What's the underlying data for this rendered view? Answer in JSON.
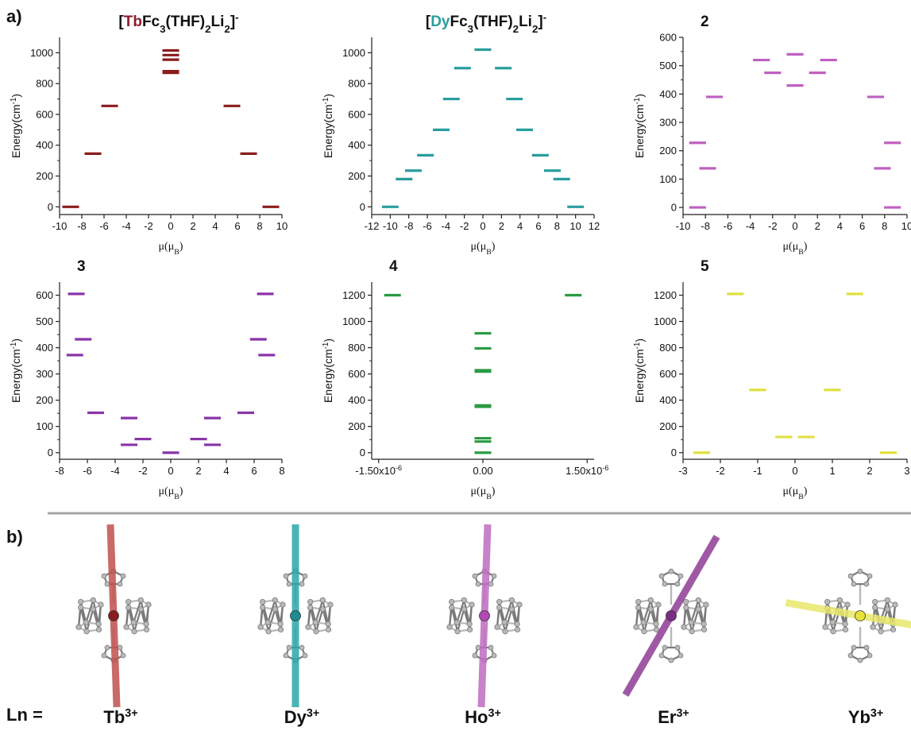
{
  "figure": {
    "panel_a_label": "a)",
    "panel_b_label": "b)",
    "ln_prefix": "Ln =",
    "ions": [
      {
        "symbol": "Tb",
        "charge": "3+",
        "axis_color": "#c0504d"
      },
      {
        "symbol": "Dy",
        "charge": "3+",
        "axis_color": "#2aa7a7"
      },
      {
        "symbol": "Ho",
        "charge": "3+",
        "axis_color": "#bd6cc0"
      },
      {
        "symbol": "Er",
        "charge": "3+",
        "axis_color": "#8e3c94"
      },
      {
        "symbol": "Yb",
        "charge": "3+",
        "axis_color": "#e8e86a"
      }
    ],
    "colors": {
      "divider": "#a6a6a6",
      "axis": "#222222",
      "molecule": "#b9b9b9",
      "molecule_edge": "#7a7a7a"
    }
  },
  "chart_data": [
    {
      "type": "scatter",
      "title_parts": [
        {
          "t": "[",
          "color": "#111111"
        },
        {
          "t": "Tb",
          "color": "#8b1c2c"
        },
        {
          "t": "Fc",
          "color": "#111111"
        },
        {
          "t": "3",
          "sub": true
        },
        {
          "t": "(THF)",
          "color": "#111111"
        },
        {
          "t": "2",
          "sub": true
        },
        {
          "t": "Li",
          "color": "#111111"
        },
        {
          "t": "2",
          "sub": true
        },
        {
          "t": "]",
          "color": "#111111"
        },
        {
          "t": "-",
          "sup": true
        }
      ],
      "ylabel": "Energy(cm-1)",
      "xlabel": "μ(μB)",
      "xlim": [
        -10,
        10
      ],
      "ylim": [
        -50,
        1100
      ],
      "xticks": [
        -10,
        -8,
        -6,
        -4,
        -2,
        0,
        2,
        4,
        6,
        8,
        10
      ],
      "yticks": [
        0,
        200,
        400,
        600,
        800,
        1000
      ],
      "color": "#8b1c1c",
      "levels": [
        {
          "mu": -9.0,
          "E": 0
        },
        {
          "mu": 9.0,
          "E": 0
        },
        {
          "mu": -7.0,
          "E": 345
        },
        {
          "mu": 7.0,
          "E": 345
        },
        {
          "mu": -5.5,
          "E": 655
        },
        {
          "mu": 5.5,
          "E": 655
        },
        {
          "mu": 0,
          "E": 870
        },
        {
          "mu": 0,
          "E": 880
        },
        {
          "mu": 0,
          "E": 955
        },
        {
          "mu": 0,
          "E": 985
        },
        {
          "mu": 0,
          "E": 1015
        }
      ]
    },
    {
      "type": "scatter",
      "title_parts": [
        {
          "t": "[",
          "color": "#111111"
        },
        {
          "t": "Dy",
          "color": "#2a9d9d"
        },
        {
          "t": "Fc",
          "color": "#111111"
        },
        {
          "t": "3",
          "sub": true
        },
        {
          "t": "(THF)",
          "color": "#111111"
        },
        {
          "t": "2",
          "sub": true
        },
        {
          "t": "Li",
          "color": "#111111"
        },
        {
          "t": "2",
          "sub": true
        },
        {
          "t": "]",
          "color": "#111111"
        },
        {
          "t": "-",
          "sup": true
        }
      ],
      "ylabel": "Energy(cm-1)",
      "xlabel": "μ(μB)",
      "xlim": [
        -12,
        12
      ],
      "ylim": [
        -50,
        1100
      ],
      "xticks": [
        -12,
        -10,
        -8,
        -6,
        -4,
        -2,
        0,
        2,
        4,
        6,
        8,
        10,
        12
      ],
      "yticks": [
        0,
        200,
        400,
        600,
        800,
        1000
      ],
      "color": "#2a9d9d",
      "levels": [
        {
          "mu": -10,
          "E": 0
        },
        {
          "mu": 10,
          "E": 0
        },
        {
          "mu": -8.5,
          "E": 180
        },
        {
          "mu": 8.5,
          "E": 180
        },
        {
          "mu": -7.5,
          "E": 235
        },
        {
          "mu": 7.5,
          "E": 235
        },
        {
          "mu": -6.2,
          "E": 335
        },
        {
          "mu": 6.2,
          "E": 335
        },
        {
          "mu": -4.5,
          "E": 500
        },
        {
          "mu": 4.5,
          "E": 500
        },
        {
          "mu": -3.4,
          "E": 700
        },
        {
          "mu": 3.4,
          "E": 700
        },
        {
          "mu": -2.2,
          "E": 900
        },
        {
          "mu": 2.2,
          "E": 900
        },
        {
          "mu": 0,
          "E": 1020
        }
      ]
    },
    {
      "type": "scatter",
      "title_parts": [
        {
          "t": "2",
          "color": "#111111"
        }
      ],
      "ylabel": "Energy(cm-1)",
      "xlabel": "μ(μB)",
      "xlim": [
        -10,
        10
      ],
      "ylim": [
        -25,
        600
      ],
      "xticks": [
        -10,
        -8,
        -6,
        -4,
        -2,
        0,
        2,
        4,
        6,
        8,
        10
      ],
      "yticks": [
        0,
        100,
        200,
        300,
        400,
        500,
        600
      ],
      "color": "#c060c0",
      "levels": [
        {
          "mu": -8.7,
          "E": 0
        },
        {
          "mu": 8.7,
          "E": 0
        },
        {
          "mu": -7.8,
          "E": 138
        },
        {
          "mu": 7.8,
          "E": 138
        },
        {
          "mu": -8.7,
          "E": 228
        },
        {
          "mu": 8.7,
          "E": 228
        },
        {
          "mu": -7.2,
          "E": 390
        },
        {
          "mu": 7.2,
          "E": 390
        },
        {
          "mu": 0,
          "E": 430
        },
        {
          "mu": -2.0,
          "E": 475
        },
        {
          "mu": 2.0,
          "E": 475
        },
        {
          "mu": -3.0,
          "E": 520
        },
        {
          "mu": 3.0,
          "E": 520
        },
        {
          "mu": 0,
          "E": 540
        }
      ]
    },
    {
      "type": "scatter",
      "title_parts": [
        {
          "t": "3",
          "color": "#111111"
        }
      ],
      "ylabel": "Energy(cm-1)",
      "xlabel": "μ(μB)",
      "xlim": [
        -8,
        8
      ],
      "ylim": [
        -25,
        650
      ],
      "xticks": [
        -8,
        -6,
        -4,
        -2,
        0,
        2,
        4,
        6,
        8
      ],
      "yticks": [
        0,
        100,
        200,
        300,
        400,
        500,
        600
      ],
      "color": "#8a35a8",
      "levels": [
        {
          "mu": 0,
          "E": 0
        },
        {
          "mu": -3.0,
          "E": 30
        },
        {
          "mu": 3.0,
          "E": 30
        },
        {
          "mu": -2.0,
          "E": 52
        },
        {
          "mu": 2.0,
          "E": 52
        },
        {
          "mu": -3.0,
          "E": 132
        },
        {
          "mu": 3.0,
          "E": 132
        },
        {
          "mu": -5.4,
          "E": 152
        },
        {
          "mu": 5.4,
          "E": 152
        },
        {
          "mu": -6.9,
          "E": 372
        },
        {
          "mu": 6.9,
          "E": 372
        },
        {
          "mu": -6.3,
          "E": 432
        },
        {
          "mu": 6.3,
          "E": 432
        },
        {
          "mu": -6.8,
          "E": 605
        },
        {
          "mu": 6.8,
          "E": 605
        }
      ]
    },
    {
      "type": "scatter",
      "title_parts": [
        {
          "t": "4",
          "color": "#111111"
        }
      ],
      "ylabel": "Energy(cm-1)",
      "xlabel": "μ(μB)",
      "xlim": [
        -1.6,
        1.6
      ],
      "ylim": [
        -50,
        1300
      ],
      "xticks": [
        -1.5,
        0,
        1.5
      ],
      "xtick_labels": [
        "-1.50x10-6",
        "0.00",
        "1.50x10-6"
      ],
      "yticks": [
        0,
        200,
        400,
        600,
        800,
        1000,
        1200
      ],
      "color": "#2a9a44",
      "levels": [
        {
          "mu": 0,
          "E": 0
        },
        {
          "mu": 0,
          "E": 85
        },
        {
          "mu": 0,
          "E": 110
        },
        {
          "mu": 0,
          "E": 350
        },
        {
          "mu": 0,
          "E": 360
        },
        {
          "mu": 0,
          "E": 618
        },
        {
          "mu": 0,
          "E": 628
        },
        {
          "mu": 0,
          "E": 795
        },
        {
          "mu": 0,
          "E": 910
        },
        {
          "mu": -1.3,
          "E": 1200
        },
        {
          "mu": 1.3,
          "E": 1200
        }
      ]
    },
    {
      "type": "scatter",
      "title_parts": [
        {
          "t": "5",
          "color": "#111111"
        }
      ],
      "ylabel": "Energy(cm-1)",
      "xlabel": "μ(μB)",
      "xlim": [
        -3,
        3
      ],
      "ylim": [
        -50,
        1300
      ],
      "xticks": [
        -3,
        -2,
        -1,
        0,
        1,
        2,
        3
      ],
      "yticks": [
        0,
        200,
        400,
        600,
        800,
        1000,
        1200
      ],
      "color": "#e0e040",
      "levels": [
        {
          "mu": -2.5,
          "E": 0
        },
        {
          "mu": 2.5,
          "E": 0
        },
        {
          "mu": -0.3,
          "E": 120
        },
        {
          "mu": 0.3,
          "E": 120
        },
        {
          "mu": -1.0,
          "E": 478
        },
        {
          "mu": 1.0,
          "E": 478
        },
        {
          "mu": -1.6,
          "E": 1210
        },
        {
          "mu": 1.6,
          "E": 1210
        }
      ]
    }
  ]
}
